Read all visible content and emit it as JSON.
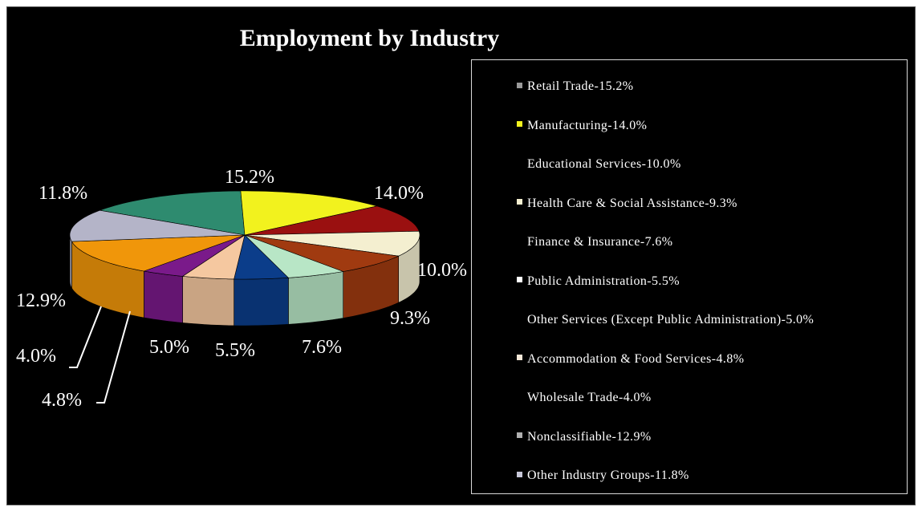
{
  "chart_data": {
    "type": "pie",
    "title": "Employment by Industry",
    "slices": [
      {
        "label": "Retail Trade",
        "value": 15.2,
        "pct_label": "15.2%",
        "legend": "Retail Trade-15.2%",
        "color": "#2e8b6f",
        "swatch": "#9a9a9a"
      },
      {
        "label": "Manufacturing",
        "value": 14.0,
        "pct_label": "14.0%",
        "legend": "Manufacturing-14.0%",
        "color": "#f2f21e",
        "swatch": "#f2f21e"
      },
      {
        "label": "Educational Services",
        "value": 10.0,
        "pct_label": "10.0%",
        "legend": "Educational Services-10.0%",
        "color": "#9a1010",
        "swatch": "#000000"
      },
      {
        "label": "Health Care & Social Assistance",
        "value": 9.3,
        "pct_label": "9.3%",
        "legend": "Health Care & Social Assistance-9.3%",
        "color": "#f4efd0",
        "swatch": "#f4efd0"
      },
      {
        "label": "Finance & Insurance",
        "value": 7.6,
        "pct_label": "7.6%",
        "legend": "Finance & Insurance-7.6%",
        "color": "#a03a10",
        "swatch": "#000000"
      },
      {
        "label": "Public Administration",
        "value": 5.5,
        "pct_label": "5.5%",
        "legend": "Public Administration-5.5%",
        "color": "#b8e6c6",
        "swatch": "#ffffff"
      },
      {
        "label": "Other Services (Except Public Administration)",
        "value": 5.0,
        "pct_label": "5.0%",
        "legend": "Other Services (Except Public Administration)-5.0%",
        "color": "#0b3d8a",
        "swatch": "#000000"
      },
      {
        "label": "Accommodation & Food Services",
        "value": 4.8,
        "pct_label": "4.8%",
        "legend": "Accommodation & Food Services-4.8%",
        "color": "#f5c8a0",
        "swatch": "#f5e8d8"
      },
      {
        "label": "Wholesale Trade",
        "value": 4.0,
        "pct_label": "4.0%",
        "legend": "Wholesale Trade-4.0%",
        "color": "#7a1a8a",
        "swatch": "#000000"
      },
      {
        "label": "Nonclassifiable",
        "value": 12.9,
        "pct_label": "12.9%",
        "legend": "Nonclassifiable-12.9%",
        "color": "#f0960a",
        "swatch": "#b0b0b0"
      },
      {
        "label": "Other Industry Groups",
        "value": 11.8,
        "pct_label": "11.8%",
        "legend": "Other Industry Groups-11.8%",
        "color": "#b4b4c8",
        "swatch": "#c8c8d8"
      }
    ],
    "legend_position": "right"
  }
}
